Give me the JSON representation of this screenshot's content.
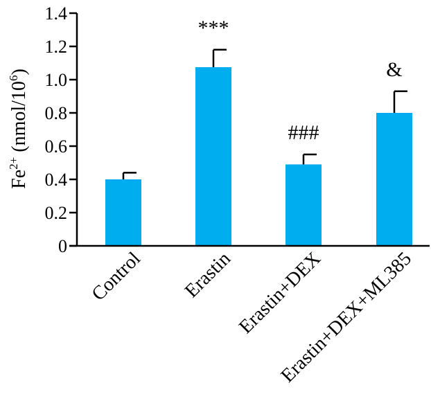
{
  "chart_data": {
    "type": "bar",
    "title": "",
    "xlabel": "",
    "ylabel_parts": {
      "base": "Fe",
      "sup1": "2+",
      "mid": " (nmol/10",
      "sup2": "6",
      "end": ")"
    },
    "ylim": [
      0,
      1.4
    ],
    "yticks": [
      "0",
      "0.2",
      "0.4",
      "0.6",
      "0.8",
      "1.0",
      "1.2",
      "1.4"
    ],
    "categories": [
      "Control",
      "Erastin",
      "Erastin+DEX",
      "Erastin+DEX+ML385"
    ],
    "values": [
      0.4,
      1.075,
      0.49,
      0.8
    ],
    "errors": [
      0.04,
      0.105,
      0.06,
      0.13
    ],
    "annotations": [
      "",
      "***",
      "###",
      "&"
    ],
    "bar_color": "#00aeef",
    "grid": false
  }
}
